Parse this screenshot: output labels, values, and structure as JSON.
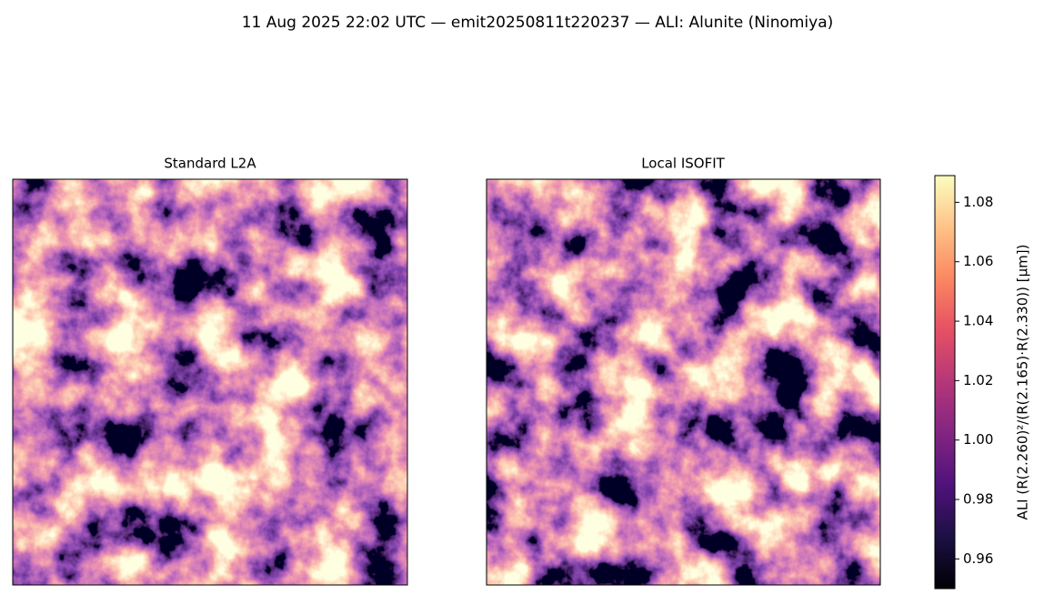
{
  "chart_data": {
    "type": "image",
    "title": "11 Aug 2025 22:02 UTC — emit20250811t220237 — ALI: Alunite (Ninomiya)",
    "panels": [
      {
        "title": "Standard L2A"
      },
      {
        "title": "Local ISOFIT"
      }
    ],
    "colorbar": {
      "label": "ALI  (R(2.260)²/(R(2.165)·R(2.330))  [μm])",
      "colormap": "magma",
      "lim": [
        0.95,
        1.089
      ],
      "ticks": [
        0.96,
        0.98,
        {
          "value": 1,
          "label": "1.00"
        },
        1.02,
        1.04,
        1.06,
        1.08
      ]
    }
  }
}
